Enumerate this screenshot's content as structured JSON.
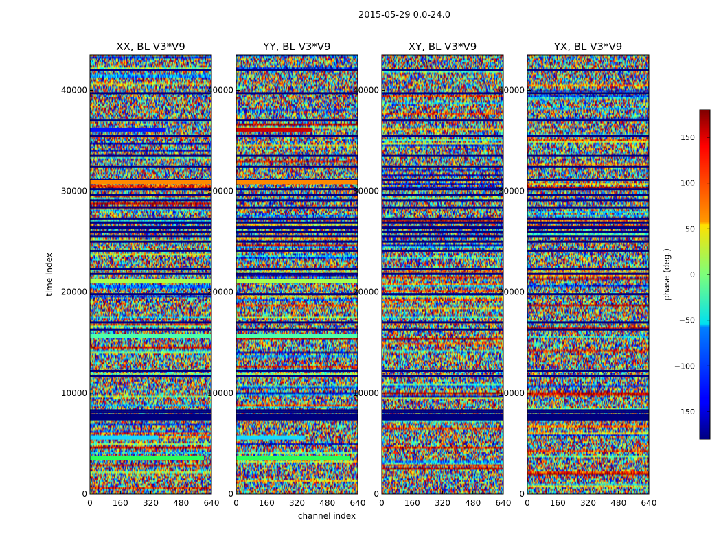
{
  "figure": {
    "suptitle": "2015-05-29 0.0-24.0",
    "xlabel": "channel index",
    "ylabel": "time index",
    "colorbar_label": "phase (deg.)"
  },
  "chart_data": {
    "type": "heatmap",
    "title": "2015-05-29 0.0-24.0",
    "xlabel": "channel index",
    "ylabel": "time index",
    "xlim": [
      0,
      640
    ],
    "ylim": [
      0,
      43500
    ],
    "xticks": [
      0,
      160,
      320,
      480,
      640
    ],
    "yticks": [
      0,
      10000,
      20000,
      30000,
      40000
    ],
    "colormap": "jet",
    "clim": [
      -180,
      180
    ],
    "colorbar_ticks": [
      150,
      100,
      50,
      0,
      -50,
      -100,
      -150
    ],
    "colorbar_label": "phase (deg.)",
    "panels": [
      {
        "title": "XX, BL V3*V9",
        "pol": "XX"
      },
      {
        "title": "YY, BL V3*V9",
        "pol": "YY"
      },
      {
        "title": "XY, BL V3*V9",
        "pol": "XY"
      },
      {
        "title": "YX, BL V3*V9",
        "pol": "YX"
      }
    ],
    "flagged_rows": [
      7500,
      7800,
      8100,
      8300,
      11700,
      12200,
      16300,
      17000,
      19800,
      21800,
      22300,
      24100,
      25000,
      25500,
      26000,
      26400,
      26900,
      27300,
      28400,
      29100,
      29600,
      30200,
      31100,
      32400,
      33500,
      35500,
      37000,
      39700,
      42000
    ],
    "colored_bands": [
      {
        "time": 3600,
        "channels": [
          0,
          600
        ],
        "color": "#29ff5a"
      },
      {
        "time": 5600,
        "channels": [
          0,
          360
        ],
        "color": "#18d8ff"
      },
      {
        "time": 36100,
        "channels": [
          0,
          400
        ],
        "color": "#0010ff"
      },
      {
        "time": 30900,
        "channels": [
          0,
          640
        ],
        "color": "#ff8a00"
      },
      {
        "time": 21100,
        "channels": [
          0,
          640
        ],
        "color": "#a8ff4c"
      },
      {
        "time": 15700,
        "channels": [
          0,
          640
        ],
        "color": "#4cffad"
      }
    ]
  }
}
